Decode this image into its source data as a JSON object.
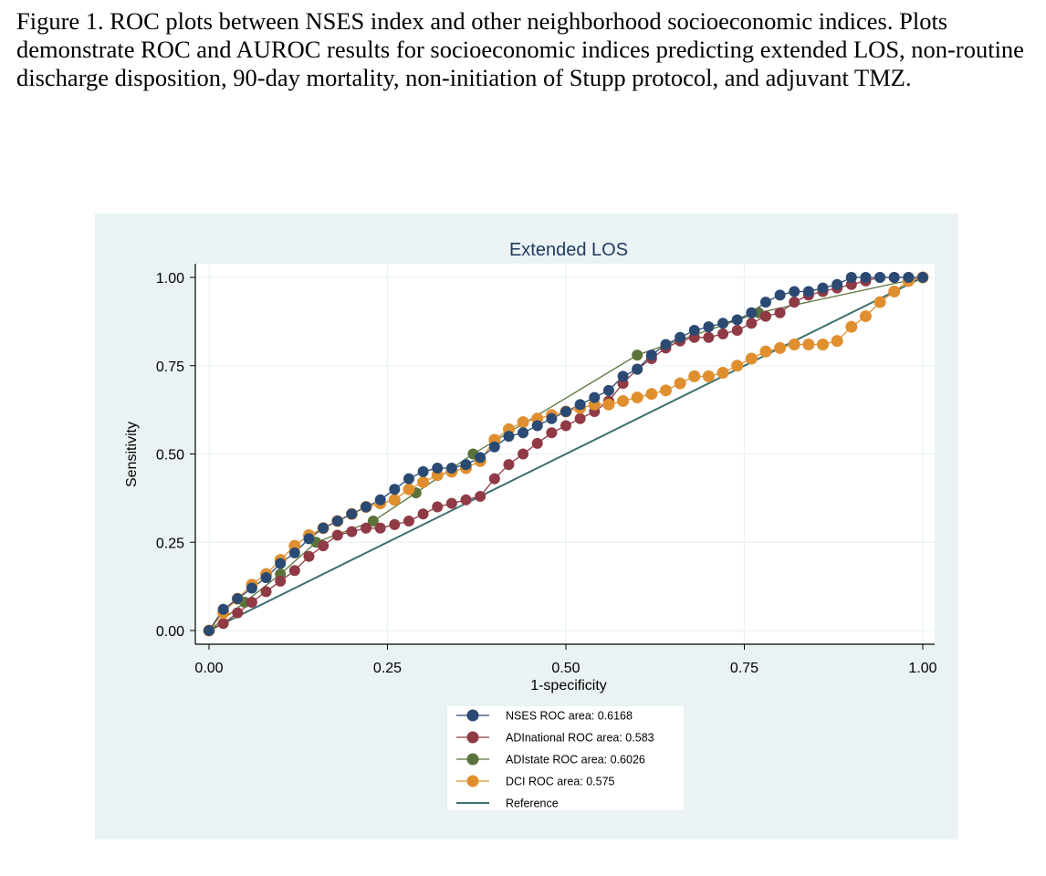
{
  "caption": "Figure 1. ROC plots between NSES index and other neighborhood socioeconomic indices. Plots demonstrate ROC and AUROC results for socioeconomic indices predicting extended LOS, non-routine discharge disposition, 90-day mortality, non-initiation of Stupp protocol, and adjuvant TMZ.",
  "chart_data": {
    "type": "line",
    "title": "Extended LOS",
    "xlabel": "1-specificity",
    "ylabel": "Sensitivity",
    "xlim": [
      0,
      1
    ],
    "ylim": [
      0,
      1
    ],
    "xticks": [
      "0.00",
      "0.25",
      "0.50",
      "0.75",
      "1.00"
    ],
    "yticks": [
      "0.00",
      "0.25",
      "0.50",
      "0.75",
      "1.00"
    ],
    "grid": true,
    "legend_position": "bottom",
    "colors": {
      "NSES": "#2b4a73",
      "ADInational": "#8f3a45",
      "ADIstate": "#5a733a",
      "DCI": "#e08f2f",
      "Reference": "#3f7070",
      "panel_bg": "#eaf2f3"
    },
    "series": [
      {
        "name": "NSES ROC area: 0.6168",
        "key": "NSES",
        "x": [
          0,
          0.02,
          0.04,
          0.06,
          0.08,
          0.1,
          0.12,
          0.14,
          0.16,
          0.18,
          0.2,
          0.22,
          0.24,
          0.26,
          0.28,
          0.3,
          0.32,
          0.34,
          0.36,
          0.38,
          0.4,
          0.42,
          0.44,
          0.46,
          0.48,
          0.5,
          0.52,
          0.54,
          0.56,
          0.58,
          0.6,
          0.62,
          0.64,
          0.66,
          0.68,
          0.7,
          0.72,
          0.74,
          0.76,
          0.78,
          0.8,
          0.82,
          0.84,
          0.86,
          0.88,
          0.9,
          0.92,
          0.94,
          0.96,
          0.98,
          1.0
        ],
        "y": [
          0,
          0.06,
          0.09,
          0.12,
          0.15,
          0.19,
          0.22,
          0.26,
          0.29,
          0.31,
          0.33,
          0.35,
          0.37,
          0.4,
          0.43,
          0.45,
          0.46,
          0.46,
          0.47,
          0.49,
          0.52,
          0.55,
          0.56,
          0.58,
          0.6,
          0.62,
          0.64,
          0.66,
          0.68,
          0.72,
          0.74,
          0.78,
          0.81,
          0.83,
          0.85,
          0.86,
          0.87,
          0.88,
          0.9,
          0.93,
          0.95,
          0.96,
          0.96,
          0.97,
          0.98,
          1.0,
          1.0,
          1.0,
          1.0,
          1.0,
          1.0
        ]
      },
      {
        "name": "ADInational ROC area: 0.583",
        "key": "ADInational",
        "x": [
          0,
          0.02,
          0.04,
          0.06,
          0.08,
          0.1,
          0.12,
          0.14,
          0.16,
          0.18,
          0.2,
          0.22,
          0.24,
          0.26,
          0.28,
          0.3,
          0.32,
          0.34,
          0.36,
          0.38,
          0.4,
          0.42,
          0.44,
          0.46,
          0.48,
          0.5,
          0.52,
          0.54,
          0.56,
          0.58,
          0.6,
          0.62,
          0.64,
          0.66,
          0.68,
          0.7,
          0.72,
          0.74,
          0.76,
          0.78,
          0.8,
          0.82,
          0.84,
          0.86,
          0.88,
          0.9,
          0.92,
          0.94,
          0.96,
          0.98,
          1.0
        ],
        "y": [
          0,
          0.02,
          0.05,
          0.08,
          0.11,
          0.14,
          0.17,
          0.21,
          0.24,
          0.27,
          0.28,
          0.29,
          0.29,
          0.3,
          0.31,
          0.33,
          0.35,
          0.36,
          0.37,
          0.38,
          0.43,
          0.47,
          0.5,
          0.53,
          0.56,
          0.58,
          0.6,
          0.62,
          0.65,
          0.7,
          0.74,
          0.77,
          0.8,
          0.82,
          0.83,
          0.83,
          0.84,
          0.85,
          0.87,
          0.89,
          0.9,
          0.93,
          0.95,
          0.96,
          0.97,
          0.98,
          0.99,
          1.0,
          1.0,
          1.0,
          1.0
        ]
      },
      {
        "name": "ADIstate ROC area: 0.6026",
        "key": "ADIstate",
        "x": [
          0,
          0.05,
          0.1,
          0.15,
          0.23,
          0.29,
          0.37,
          0.6,
          0.77,
          1.0
        ],
        "y": [
          0,
          0.08,
          0.16,
          0.25,
          0.31,
          0.39,
          0.5,
          0.78,
          0.9,
          1.0
        ]
      },
      {
        "name": "DCI ROC area: 0.575",
        "key": "DCI",
        "x": [
          0,
          0.02,
          0.04,
          0.06,
          0.08,
          0.1,
          0.12,
          0.14,
          0.16,
          0.18,
          0.2,
          0.22,
          0.24,
          0.26,
          0.28,
          0.3,
          0.32,
          0.34,
          0.36,
          0.38,
          0.4,
          0.42,
          0.44,
          0.46,
          0.48,
          0.5,
          0.52,
          0.54,
          0.56,
          0.58,
          0.6,
          0.62,
          0.64,
          0.66,
          0.68,
          0.7,
          0.72,
          0.74,
          0.76,
          0.78,
          0.8,
          0.82,
          0.84,
          0.86,
          0.88,
          0.9,
          0.92,
          0.94,
          0.96,
          0.98,
          1.0
        ],
        "y": [
          0,
          0.05,
          0.09,
          0.13,
          0.16,
          0.2,
          0.24,
          0.27,
          0.29,
          0.31,
          0.33,
          0.35,
          0.36,
          0.37,
          0.4,
          0.42,
          0.44,
          0.45,
          0.46,
          0.48,
          0.54,
          0.57,
          0.59,
          0.6,
          0.61,
          0.62,
          0.63,
          0.64,
          0.64,
          0.65,
          0.66,
          0.67,
          0.68,
          0.7,
          0.72,
          0.72,
          0.73,
          0.75,
          0.77,
          0.79,
          0.8,
          0.81,
          0.81,
          0.81,
          0.82,
          0.86,
          0.89,
          0.93,
          0.96,
          0.99,
          1.0
        ]
      },
      {
        "name": "Reference",
        "key": "Reference",
        "x": [
          0,
          1
        ],
        "y": [
          0,
          1
        ]
      }
    ]
  }
}
